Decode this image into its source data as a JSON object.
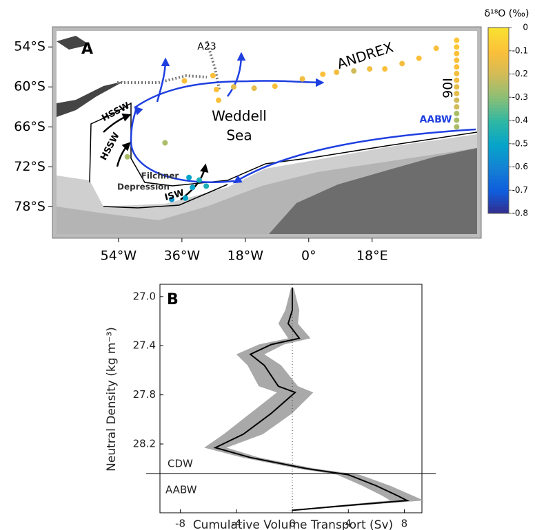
{
  "chart_data": [
    {
      "type": "map",
      "panel_label": "A",
      "xlim": [
        -71.6,
        47.8
      ],
      "ylim": [
        -51.6,
        -82.1
      ],
      "xticks": [
        {
          "value": -54,
          "label": "54°W"
        },
        {
          "value": -36,
          "label": "36°W"
        },
        {
          "value": -18,
          "label": "18°W"
        },
        {
          "value": 0,
          "label": "0°"
        },
        {
          "value": 18,
          "label": "18°E"
        }
      ],
      "yticks": [
        {
          "value": -54,
          "label": "54°S"
        },
        {
          "value": -60,
          "label": "60°S"
        },
        {
          "value": -66,
          "label": "66°S"
        },
        {
          "value": -72,
          "label": "72°S"
        },
        {
          "value": -78,
          "label": "78°S"
        }
      ],
      "points": {
        "lon": [
          42,
          42,
          42,
          42,
          42,
          42,
          42,
          42,
          42,
          42,
          42,
          42,
          42,
          42,
          36.2,
          31.3,
          26.5,
          21.6,
          17.3,
          12.8,
          7.9,
          4.0,
          -1.8,
          -9.6,
          -15.5,
          -21.3,
          -27.2,
          -26.2,
          -25.6,
          -35.3,
          -40.8,
          -51.5,
          -34.0,
          -31.1,
          -33.0,
          -29.1,
          -38.9,
          -35.0
        ],
        "lat": [
          -53,
          -54,
          -55,
          -56,
          -57,
          -58,
          -59,
          -60,
          -61,
          -62,
          -63,
          -64,
          -65,
          -66,
          -54.2,
          -55.7,
          -56.5,
          -57.3,
          -57.3,
          -57.6,
          -57.8,
          -58.1,
          -58.8,
          -59.9,
          -60.2,
          -60.0,
          -58.3,
          -60.4,
          -62.0,
          -59.1,
          -68.4,
          -70.5,
          -73.6,
          -74.0,
          -75.1,
          -74.9,
          -76.9,
          -76.7
        ],
        "values": [
          -0.08,
          -0.08,
          -0.1,
          -0.1,
          -0.1,
          -0.12,
          -0.12,
          -0.15,
          -0.15,
          -0.2,
          -0.2,
          -0.25,
          -0.25,
          -0.25,
          -0.1,
          -0.1,
          -0.12,
          -0.1,
          -0.12,
          -0.2,
          -0.12,
          -0.1,
          -0.12,
          -0.1,
          -0.15,
          -0.15,
          -0.1,
          -0.1,
          -0.1,
          -0.1,
          -0.25,
          -0.25,
          -0.5,
          -0.45,
          -0.5,
          -0.45,
          -0.55,
          -0.5
        ]
      },
      "colorbar": {
        "label": "δ¹⁸O (‰)",
        "ylim": [
          -0.8,
          0
        ],
        "yticks": [
          0,
          -0.1,
          -0.2,
          -0.3,
          -0.4,
          -0.5,
          -0.6,
          -0.7,
          -0.8
        ]
      },
      "annotations": [
        "A23",
        "ANDREX",
        "I06",
        "Weddell",
        "Sea",
        "AABW",
        "HSSW",
        "HSSW",
        "Filchner",
        "Depression",
        "ISW"
      ]
    },
    {
      "type": "line",
      "panel_label": "B",
      "xlabel": "Cumulative Volume Transport (Sv)",
      "ylabel": "Neutral Density (kg m⁻³)",
      "xlim": [
        -9.46,
        9.26
      ],
      "ylim": [
        26.9,
        28.76
      ],
      "xticks": [
        -8,
        -4,
        0,
        4,
        8
      ],
      "yticks": [
        {
          "value": 27.0,
          "label": "27.0"
        },
        27.4,
        27.8,
        28.2
      ],
      "y": [
        26.93,
        27.11,
        27.22,
        27.34,
        27.39,
        27.47,
        27.56,
        27.73,
        27.78,
        27.95,
        28.12,
        28.23,
        28.31,
        28.4,
        28.45,
        28.54,
        28.62,
        28.66,
        28.7,
        28.74
      ],
      "series": [
        {
          "color": "#000000",
          "shade": "#a9a9a9",
          "values": [
            0,
            0,
            -0.3,
            0.5,
            -1.5,
            -3,
            -2,
            -1,
            0.2,
            -1.5,
            -3.5,
            -5.5,
            -3,
            1,
            4,
            6,
            7.5,
            8.2,
            4,
            0
          ],
          "errors": [
            0.1,
            0.5,
            0.7,
            0.8,
            0.9,
            1,
            1.2,
            1.4,
            1.3,
            1.5,
            1.4,
            0.8,
            0.6,
            0.6,
            0.8,
            1,
            1.1,
            1.2,
            0.8,
            0.3
          ]
        }
      ],
      "boundary": 28.44,
      "annotations": [
        "CDW",
        "AABW"
      ]
    }
  ]
}
